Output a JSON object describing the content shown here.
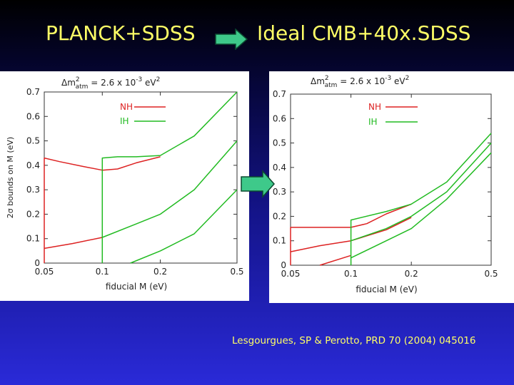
{
  "slide": {
    "title_left": "PLANCK+SDSS",
    "title_right": "Ideal CMB+40x.SDSS",
    "citation": "Lesgourgues, SP & Perotto, PRD 70 (2004) 045016",
    "colors": {
      "title": "#ffff66",
      "arrow_fill": "#3ec98a",
      "arrow_stroke": "#0c4a30",
      "nh": "#dd2222",
      "ih": "#22bb22"
    }
  },
  "chart_data": [
    {
      "type": "line",
      "panel": "PLANCK+SDSS",
      "header": "Δm²atm = 2.6 x 10⁻³ eV²",
      "header_parts": {
        "main": "Δm",
        "sup1": "2",
        "sub": "atm",
        "eq": "= 2.6 x 10",
        "sup2": "-3",
        "unit": " eV",
        "sup3": "2"
      },
      "xlabel": "fiducial M   (eV)",
      "ylabel": "2σ bounds on M  (eV)",
      "xscale": "log",
      "xlim": [
        0.05,
        0.5
      ],
      "ylim": [
        0,
        0.7
      ],
      "xticks": [
        {
          "value": 0.05,
          "label": "0.05"
        },
        {
          "value": 0.1,
          "label": "0.1"
        },
        {
          "value": 0.2,
          "label": "0.2"
        },
        {
          "value": 0.5,
          "label": "0.5"
        }
      ],
      "yticks": [
        {
          "value": 0,
          "label": "0"
        },
        {
          "value": 0.1,
          "label": "0.1"
        },
        {
          "value": 0.2,
          "label": "0.2"
        },
        {
          "value": 0.3,
          "label": "0.3"
        },
        {
          "value": 0.4,
          "label": "0.4"
        },
        {
          "value": 0.5,
          "label": "0.5"
        },
        {
          "value": 0.6,
          "label": "0.6"
        },
        {
          "value": 0.7,
          "label": "0.7"
        }
      ],
      "legend": {
        "position": "top-center",
        "entries": [
          {
            "name": "NH",
            "color": "#dd2222"
          },
          {
            "name": "IH",
            "color": "#22bb22"
          }
        ]
      },
      "series": [
        {
          "name": "NH",
          "color": "#dd2222",
          "x": [
            0.05,
            0.05,
            0.06,
            0.08,
            0.1,
            0.12,
            0.15,
            0.2
          ],
          "y": [
            0,
            0.43,
            0.415,
            0.395,
            0.38,
            0.385,
            0.41,
            0.435
          ]
        },
        {
          "name": "NH",
          "color": "#dd2222",
          "x": [
            0.05,
            0.07,
            0.1
          ],
          "y": [
            0.06,
            0.08,
            0.105
          ]
        },
        {
          "name": "IH",
          "color": "#22bb22",
          "x": [
            0.1,
            0.1,
            0.12,
            0.15,
            0.2,
            0.3,
            0.5
          ],
          "y": [
            0,
            0.43,
            0.435,
            0.435,
            0.44,
            0.52,
            0.7
          ]
        },
        {
          "name": "IH",
          "color": "#22bb22",
          "x": [
            0.1,
            0.15,
            0.2,
            0.3,
            0.5
          ],
          "y": [
            0.105,
            0.16,
            0.2,
            0.3,
            0.5
          ]
        },
        {
          "name": "IH",
          "color": "#22bb22",
          "x": [
            0.14,
            0.2,
            0.3,
            0.5
          ],
          "y": [
            0,
            0.05,
            0.12,
            0.3
          ]
        }
      ]
    },
    {
      "type": "line",
      "panel": "Ideal CMB+40x.SDSS",
      "header": "Δm²atm = 2.6 x 10⁻³ eV²",
      "header_parts": {
        "main": "Δm",
        "sup1": "2",
        "sub": "atm",
        "eq": "= 2.6 x 10",
        "sup2": "-3",
        "unit": " eV",
        "sup3": "2"
      },
      "xlabel": "fiducial M   (eV)",
      "ylabel": "",
      "xscale": "log",
      "xlim": [
        0.05,
        0.5
      ],
      "ylim": [
        0,
        0.7
      ],
      "xticks": [
        {
          "value": 0.05,
          "label": "0.05"
        },
        {
          "value": 0.1,
          "label": "0.1"
        },
        {
          "value": 0.2,
          "label": "0.2"
        },
        {
          "value": 0.5,
          "label": "0.5"
        }
      ],
      "yticks": [
        {
          "value": 0,
          "label": "0"
        },
        {
          "value": 0.1,
          "label": "0.1"
        },
        {
          "value": 0.2,
          "label": "0.2"
        },
        {
          "value": 0.3,
          "label": "0.3"
        },
        {
          "value": 0.4,
          "label": "0.4"
        },
        {
          "value": 0.5,
          "label": "0.5"
        },
        {
          "value": 0.6,
          "label": "0.6"
        },
        {
          "value": 0.7,
          "label": "0.7"
        }
      ],
      "legend": {
        "position": "top-center",
        "entries": [
          {
            "name": "NH",
            "color": "#dd2222"
          },
          {
            "name": "IH",
            "color": "#22bb22"
          }
        ]
      },
      "series": [
        {
          "name": "NH",
          "color": "#dd2222",
          "x": [
            0.05,
            0.05,
            0.1,
            0.12,
            0.15,
            0.2
          ],
          "y": [
            0,
            0.155,
            0.155,
            0.17,
            0.21,
            0.25
          ]
        },
        {
          "name": "NH",
          "color": "#dd2222",
          "x": [
            0.05,
            0.07,
            0.1,
            0.15,
            0.2
          ],
          "y": [
            0.055,
            0.08,
            0.1,
            0.145,
            0.195
          ]
        },
        {
          "name": "NH",
          "color": "#dd2222",
          "x": [
            0.07,
            0.1
          ],
          "y": [
            0,
            0.04
          ]
        },
        {
          "name": "IH",
          "color": "#22bb22",
          "x": [
            0.1,
            0.1,
            0.15,
            0.2,
            0.3,
            0.5
          ],
          "y": [
            0,
            0.185,
            0.22,
            0.25,
            0.34,
            0.54
          ]
        },
        {
          "name": "IH",
          "color": "#22bb22",
          "x": [
            0.1,
            0.15,
            0.2,
            0.3,
            0.5
          ],
          "y": [
            0.1,
            0.15,
            0.2,
            0.3,
            0.5
          ]
        },
        {
          "name": "IH",
          "color": "#22bb22",
          "x": [
            0.1,
            0.15,
            0.2,
            0.3,
            0.5
          ],
          "y": [
            0.03,
            0.1,
            0.15,
            0.27,
            0.46
          ]
        }
      ]
    }
  ]
}
